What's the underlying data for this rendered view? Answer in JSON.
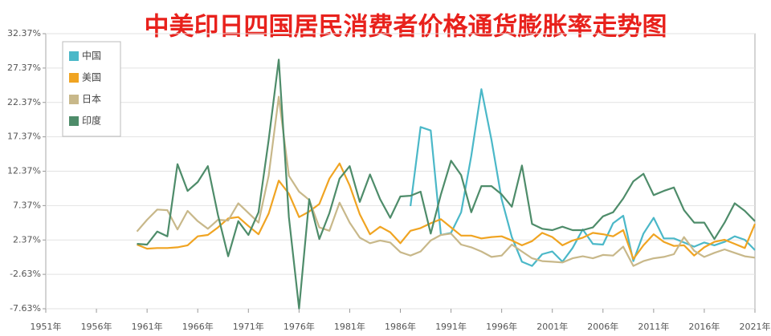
{
  "chart_data": {
    "type": "line",
    "title": "中美印日四国居民消费者价格通货膨胀率走势图",
    "x": [
      1960,
      1961,
      1962,
      1963,
      1964,
      1965,
      1966,
      1967,
      1968,
      1969,
      1970,
      1971,
      1972,
      1973,
      1974,
      1975,
      1976,
      1977,
      1978,
      1979,
      1980,
      1981,
      1982,
      1983,
      1984,
      1985,
      1986,
      1987,
      1988,
      1989,
      1990,
      1991,
      1992,
      1993,
      1994,
      1995,
      1996,
      1997,
      1998,
      1999,
      2000,
      2001,
      2002,
      2003,
      2004,
      2005,
      2006,
      2007,
      2008,
      2009,
      2010,
      2011,
      2012,
      2013,
      2014,
      2015,
      2016,
      2017,
      2018,
      2019,
      2020,
      2021
    ],
    "series": [
      {
        "name": "中国",
        "color": "#4bb8c8",
        "values": [
          null,
          null,
          null,
          null,
          null,
          null,
          null,
          null,
          null,
          null,
          null,
          null,
          null,
          null,
          null,
          null,
          null,
          null,
          null,
          null,
          null,
          null,
          null,
          null,
          null,
          null,
          null,
          7.3,
          18.8,
          18.3,
          3.1,
          3.4,
          6.4,
          14.6,
          24.3,
          16.9,
          8.3,
          2.8,
          -0.8,
          -1.4,
          0.3,
          0.7,
          -0.8,
          1.2,
          3.9,
          1.8,
          1.7,
          4.8,
          5.9,
          -0.7,
          3.3,
          5.6,
          2.6,
          2.6,
          2.0,
          1.4,
          2.0,
          1.6,
          2.1,
          2.9,
          2.4,
          0.9
        ]
      },
      {
        "name": "美国",
        "color": "#f0a422",
        "values": [
          1.7,
          1.1,
          1.2,
          1.2,
          1.3,
          1.6,
          2.9,
          3.1,
          4.2,
          5.5,
          5.7,
          4.4,
          3.2,
          6.2,
          11.0,
          9.1,
          5.7,
          6.5,
          7.6,
          11.3,
          13.5,
          10.3,
          6.1,
          3.2,
          4.3,
          3.5,
          1.9,
          3.7,
          4.1,
          4.8,
          5.4,
          4.2,
          3.0,
          3.0,
          2.6,
          2.8,
          2.9,
          2.3,
          1.6,
          2.2,
          3.4,
          2.8,
          1.6,
          2.3,
          2.7,
          3.4,
          3.2,
          2.9,
          3.8,
          -0.4,
          1.6,
          3.2,
          2.1,
          1.5,
          1.6,
          0.1,
          1.3,
          2.1,
          2.4,
          1.8,
          1.2,
          4.7
        ]
      },
      {
        "name": "日本",
        "color": "#c8b88a",
        "values": [
          3.6,
          5.3,
          6.8,
          6.7,
          3.9,
          6.6,
          5.1,
          4.0,
          5.3,
          5.2,
          7.7,
          6.3,
          4.9,
          11.7,
          23.2,
          11.7,
          9.4,
          8.2,
          4.2,
          3.7,
          7.8,
          4.9,
          2.7,
          1.9,
          2.3,
          2.0,
          0.6,
          0.1,
          0.7,
          2.3,
          3.1,
          3.3,
          1.7,
          1.3,
          0.7,
          -0.1,
          0.1,
          1.7,
          0.7,
          -0.3,
          -0.7,
          -0.8,
          -0.9,
          -0.3,
          0.0,
          -0.3,
          0.2,
          0.1,
          1.4,
          -1.4,
          -0.7,
          -0.3,
          -0.1,
          0.3,
          2.8,
          0.8,
          -0.1,
          0.5,
          1.0,
          0.5,
          0.0,
          -0.2
        ]
      },
      {
        "name": "印度",
        "color": "#4e8c6a",
        "values": [
          1.8,
          1.7,
          3.6,
          2.9,
          13.4,
          9.5,
          10.8,
          13.1,
          6.0,
          0.0,
          5.1,
          3.1,
          6.4,
          16.9,
          28.6,
          5.7,
          -7.6,
          8.3,
          2.5,
          6.3,
          11.3,
          13.1,
          7.9,
          11.9,
          8.3,
          5.6,
          8.7,
          8.8,
          9.4,
          3.3,
          9.0,
          13.9,
          11.8,
          6.4,
          10.2,
          10.2,
          9.0,
          7.2,
          13.2,
          4.7,
          4.0,
          3.8,
          4.3,
          3.8,
          3.8,
          4.2,
          5.8,
          6.4,
          8.4,
          10.9,
          12.0,
          8.9,
          9.5,
          10.0,
          6.7,
          4.9,
          4.9,
          2.5,
          4.9,
          7.7,
          6.6,
          5.1
        ]
      }
    ],
    "xlim": [
      1951,
      2021
    ],
    "xticks": [
      {
        "value": 1951,
        "label": "1951年"
      },
      {
        "value": 1956,
        "label": "1956年"
      },
      {
        "value": 1961,
        "label": "1961年"
      },
      {
        "value": 1966,
        "label": "1966年"
      },
      {
        "value": 1971,
        "label": "1971年"
      },
      {
        "value": 1976,
        "label": "1976年"
      },
      {
        "value": 1981,
        "label": "1981年"
      },
      {
        "value": 1986,
        "label": "1986年"
      },
      {
        "value": 1991,
        "label": "1991年"
      },
      {
        "value": 1996,
        "label": "1996年"
      },
      {
        "value": 2001,
        "label": "2001年"
      },
      {
        "value": 2006,
        "label": "2006年"
      },
      {
        "value": 2011,
        "label": "2011年"
      },
      {
        "value": 2016,
        "label": "2016年"
      },
      {
        "value": 2021,
        "label": "2021年"
      }
    ],
    "ylim": [
      -7.63,
      32.37
    ],
    "yticks": [
      {
        "value": -7.63,
        "label": "-7.63%"
      },
      {
        "value": -2.63,
        "label": "-2.63%"
      },
      {
        "value": 2.37,
        "label": "2.37%"
      },
      {
        "value": 7.37,
        "label": "7.37%"
      },
      {
        "value": 12.37,
        "label": "12.37%"
      },
      {
        "value": 17.37,
        "label": "17.37%"
      },
      {
        "value": 22.37,
        "label": "22.37%"
      },
      {
        "value": 27.37,
        "label": "27.37%"
      },
      {
        "value": 32.37,
        "label": "32.37%"
      }
    ],
    "grid": true,
    "legend": "top-left"
  }
}
